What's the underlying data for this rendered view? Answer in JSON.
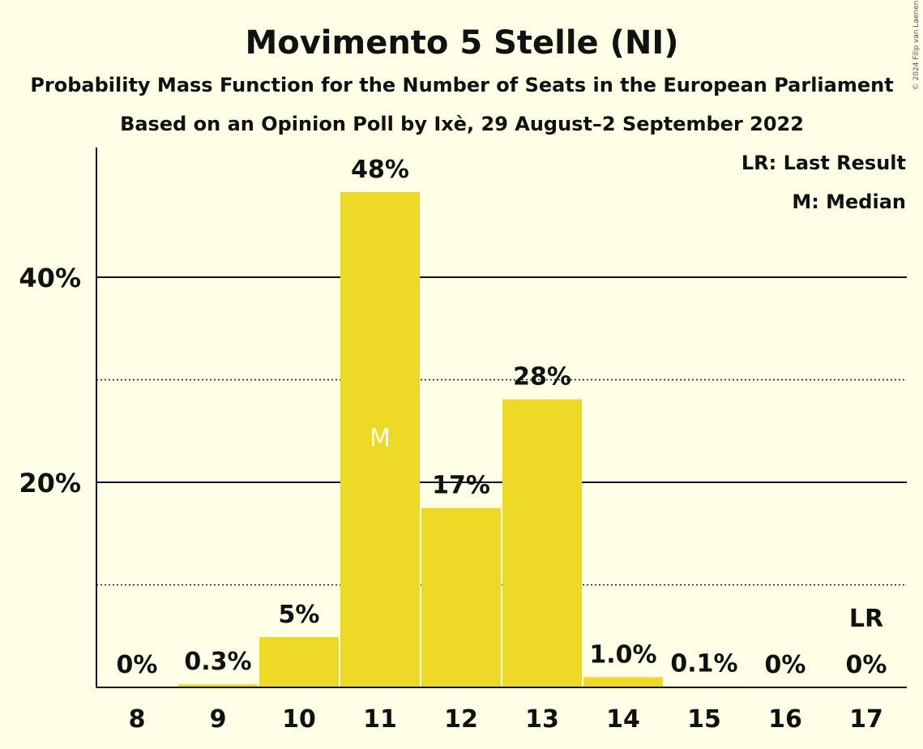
{
  "chart_data": {
    "type": "bar",
    "title": "Movimento 5 Stelle (NI)",
    "subtitle": "Probability Mass Function for the Number of Seats in the European Parliament",
    "subtitle2": "Based on an Opinion Poll by Ixè, 29 August–2 September 2022",
    "copyright": "© 2024 Filip van Laenen",
    "legend": [
      "LR: Last Result",
      "M: Median"
    ],
    "legend_position": "top-right",
    "categories": [
      "8",
      "9",
      "10",
      "11",
      "12",
      "13",
      "14",
      "15",
      "16",
      "17"
    ],
    "values": [
      0,
      0.3,
      4.9,
      48.3,
      17.5,
      28.1,
      1.0,
      0.1,
      0,
      0
    ],
    "value_labels": [
      "0%",
      "0.3%",
      "5%",
      "48%",
      "17%",
      "28%",
      "1.0%",
      "0.1%",
      "0%",
      "0%"
    ],
    "median_category": "11",
    "median_marker": "M",
    "last_result_category": "17",
    "last_result_marker": "LR",
    "y_ticks": [
      {
        "value": 20,
        "label": "20%"
      },
      {
        "value": 40,
        "label": "40%"
      }
    ],
    "y_minor_gridlines": [
      10,
      30
    ],
    "ylim": [
      0,
      52.5
    ],
    "bar_color": "#EDD926",
    "grid": true
  }
}
